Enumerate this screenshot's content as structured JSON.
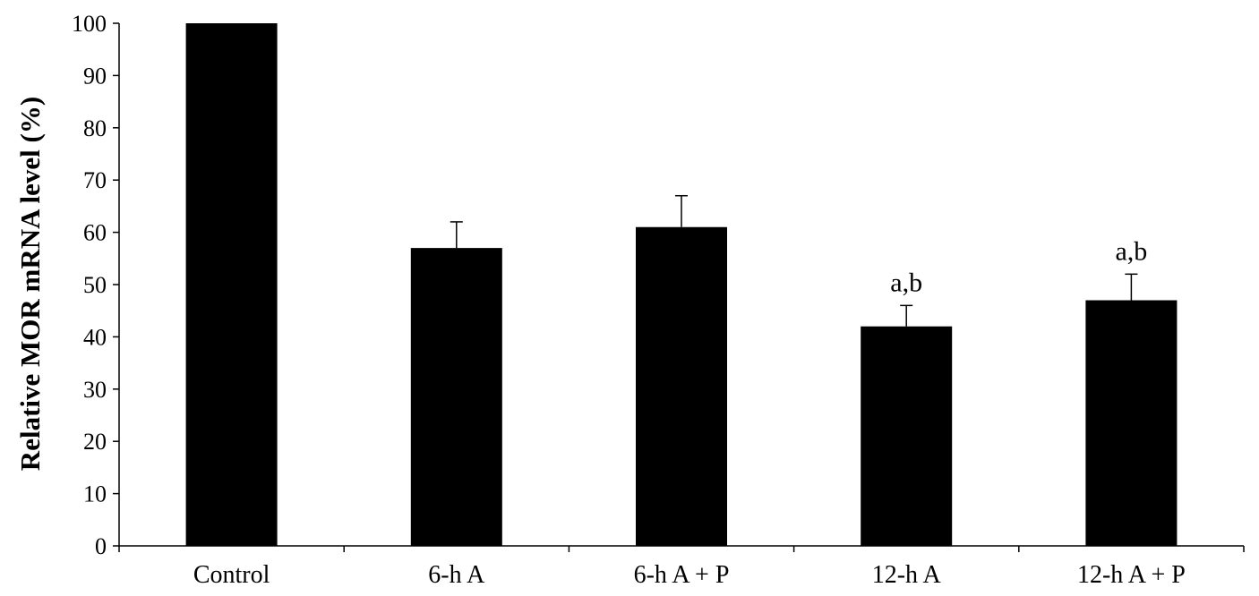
{
  "chart_data": {
    "type": "bar",
    "title": "",
    "xlabel": "",
    "ylabel": "Relative MOR mRNA level (%)",
    "ylim": [
      0,
      100
    ],
    "yticks": [
      0,
      10,
      20,
      30,
      40,
      50,
      60,
      70,
      80,
      90,
      100
    ],
    "grid": false,
    "legend": "none",
    "categories": [
      "Control",
      "6-h A",
      "6-h A + P",
      "12-h A",
      "12-h A + P"
    ],
    "values": [
      100,
      57,
      61,
      42,
      47
    ],
    "error_upper": [
      0,
      5,
      6,
      4,
      5
    ],
    "annotations": [
      "",
      "",
      "",
      "a,b",
      "a,b"
    ],
    "colors": {
      "bar": "#000000",
      "axis": "#000000",
      "background": "#ffffff"
    }
  }
}
